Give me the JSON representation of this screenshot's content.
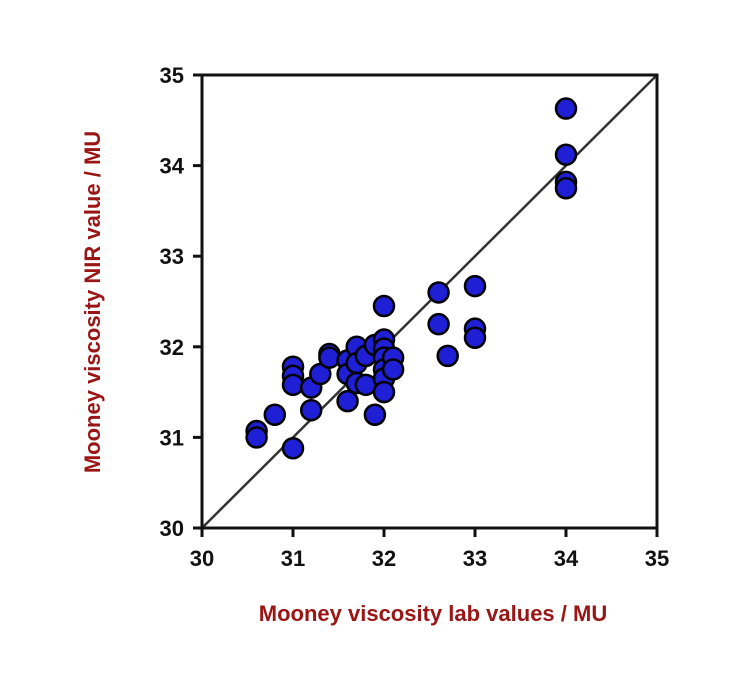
{
  "chart_data": {
    "type": "scatter",
    "title": "",
    "xlabel": "Mooney viscosity lab values / MU",
    "ylabel": "Mooney viscosity NIR value / MU",
    "xlim": [
      30,
      35
    ],
    "ylim": [
      30,
      35
    ],
    "xticks": [
      "30",
      "31",
      "32",
      "33",
      "34",
      "35"
    ],
    "yticks": [
      "30",
      "31",
      "32",
      "33",
      "34",
      "35"
    ],
    "grid": false,
    "reference_line": {
      "from": [
        30,
        30
      ],
      "to": [
        35,
        35
      ]
    },
    "series": [
      {
        "points": [
          [
            30.6,
            31.07
          ],
          [
            30.6,
            31.0
          ],
          [
            30.8,
            31.25
          ],
          [
            31.0,
            30.88
          ],
          [
            31.0,
            31.78
          ],
          [
            31.0,
            31.68
          ],
          [
            31.0,
            31.58
          ],
          [
            31.2,
            31.55
          ],
          [
            31.2,
            31.3
          ],
          [
            31.3,
            31.7
          ],
          [
            31.4,
            31.92
          ],
          [
            31.4,
            31.88
          ],
          [
            31.6,
            31.85
          ],
          [
            31.6,
            31.7
          ],
          [
            31.6,
            31.4
          ],
          [
            31.7,
            32.0
          ],
          [
            31.7,
            31.82
          ],
          [
            31.7,
            31.6
          ],
          [
            31.8,
            31.9
          ],
          [
            31.8,
            31.58
          ],
          [
            31.9,
            32.02
          ],
          [
            31.9,
            31.25
          ],
          [
            32.0,
            32.45
          ],
          [
            32.0,
            32.08
          ],
          [
            32.0,
            31.98
          ],
          [
            32.0,
            31.88
          ],
          [
            32.0,
            31.75
          ],
          [
            32.0,
            31.65
          ],
          [
            32.0,
            31.5
          ],
          [
            32.1,
            31.88
          ],
          [
            32.1,
            31.75
          ],
          [
            32.6,
            32.6
          ],
          [
            32.6,
            32.25
          ],
          [
            32.7,
            31.9
          ],
          [
            33.0,
            32.67
          ],
          [
            33.0,
            32.2
          ],
          [
            33.0,
            32.1
          ],
          [
            34.0,
            34.63
          ],
          [
            34.0,
            34.12
          ],
          [
            34.0,
            33.82
          ],
          [
            34.0,
            33.75
          ]
        ]
      }
    ],
    "colors": {
      "marker_fill": "#1f1fd6",
      "marker_stroke": "#000000",
      "axis_title": "#9a1515",
      "axes": "#111111",
      "reference_line": "#333333"
    }
  }
}
